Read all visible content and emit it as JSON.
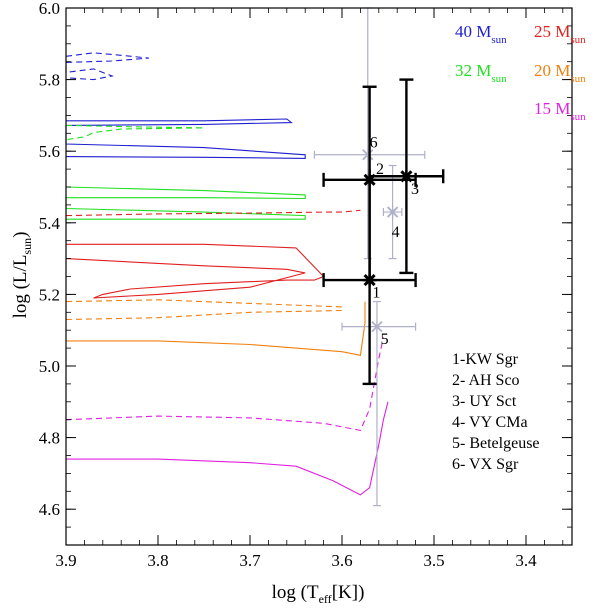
{
  "chart_data": {
    "type": "scatter",
    "title": "",
    "xlabel_main": "log (T",
    "xlabel_sub": "eff",
    "xlabel_tail": "[K])",
    "ylabel_main": "log (L/L",
    "ylabel_sub": "sun",
    "ylabel_tail": ")",
    "xlim": [
      3.9,
      3.35
    ],
    "ylim": [
      4.5,
      6.0
    ],
    "xticks": [
      3.9,
      3.8,
      3.7,
      3.6,
      3.5,
      3.4
    ],
    "xtick_labels": [
      "3.9",
      "3.8",
      "3.7",
      "3.6",
      "3.5",
      "3.4"
    ],
    "yticks": [
      4.6,
      4.8,
      5.0,
      5.2,
      5.4,
      5.6,
      5.8,
      6.0
    ],
    "ytick_labels": [
      "4.6",
      "4.8",
      "5.0",
      "5.2",
      "5.4",
      "5.6",
      "5.8",
      "6.0"
    ],
    "legend": [
      {
        "label": "40 M",
        "sub": "sun",
        "color": "#2020d0"
      },
      {
        "label": "25 M",
        "sub": "sun",
        "color": "#e02020"
      },
      {
        "label": "32 M",
        "sub": "sun",
        "color": "#20e020"
      },
      {
        "label": "20 M",
        "sub": "sun",
        "color": "#f08010"
      },
      {
        "label": "15 M",
        "sub": "sun",
        "color": "#e020e0"
      }
    ],
    "stars_black": [
      {
        "id": "1",
        "x": 3.57,
        "y": 5.24,
        "xerr": [
          3.62,
          3.52
        ],
        "yerr": [
          4.95,
          5.52
        ]
      },
      {
        "id": "2",
        "x": 3.57,
        "y": 5.52,
        "xerr": [
          3.62,
          3.52
        ],
        "yerr": [
          5.24,
          5.78
        ]
      },
      {
        "id": "3",
        "x": 3.53,
        "y": 5.53,
        "xerr": [
          3.57,
          3.49
        ],
        "yerr": [
          5.26,
          5.8
        ]
      }
    ],
    "stars_gray": [
      {
        "id": "4",
        "x": 3.545,
        "y": 5.43,
        "xerr": [
          3.555,
          3.535
        ],
        "yerr": [
          5.3,
          5.56
        ]
      },
      {
        "id": "5",
        "x": 3.562,
        "y": 5.11,
        "xerr": [
          3.6,
          3.52
        ],
        "yerr": [
          4.61,
          5.18
        ]
      },
      {
        "id": "6",
        "x": 3.572,
        "y": 5.59,
        "xerr": [
          3.63,
          3.51
        ],
        "yerr": [
          5.3,
          6.0
        ]
      }
    ],
    "star_labels": [
      {
        "text": "1",
        "x": 3.567,
        "y": 5.205
      },
      {
        "text": "2",
        "x": 3.563,
        "y": 5.55
      },
      {
        "text": "3",
        "x": 3.525,
        "y": 5.495
      },
      {
        "text": "4",
        "x": 3.546,
        "y": 5.375
      },
      {
        "text": "5",
        "x": 3.558,
        "y": 5.075
      },
      {
        "text": "6",
        "x": 3.57,
        "y": 5.625
      }
    ],
    "key": [
      "1-KW Sgr",
      "2- AH Sco",
      "3- UY Sct",
      "4- VY CMa",
      "5- Betelgeuse",
      "6- VX Sgr"
    ],
    "tracks": [
      {
        "name": "40 M solid",
        "color": "#2020d0",
        "dash": false,
        "points": [
          [
            3.9,
            5.685
          ],
          [
            3.75,
            5.685
          ],
          [
            3.66,
            5.69
          ],
          [
            3.655,
            5.68
          ],
          [
            3.75,
            5.675
          ],
          [
            3.9,
            5.672
          ],
          [
            3.9,
            5.62
          ],
          [
            3.75,
            5.61
          ],
          [
            3.64,
            5.59
          ],
          [
            3.64,
            5.58
          ],
          [
            3.75,
            5.583
          ],
          [
            3.9,
            5.585
          ]
        ]
      },
      {
        "name": "40 M dashed",
        "color": "#2020d0",
        "dash": true,
        "points": [
          [
            3.9,
            5.865
          ],
          [
            3.87,
            5.875
          ],
          [
            3.84,
            5.868
          ],
          [
            3.81,
            5.86
          ],
          [
            3.85,
            5.852
          ],
          [
            3.9,
            5.848
          ],
          [
            3.9,
            5.82
          ],
          [
            3.87,
            5.83
          ],
          [
            3.85,
            5.81
          ],
          [
            3.87,
            5.8
          ],
          [
            3.9,
            5.805
          ]
        ]
      },
      {
        "name": "32 M solid",
        "color": "#20e020",
        "dash": false,
        "points": [
          [
            3.9,
            5.5
          ],
          [
            3.75,
            5.49
          ],
          [
            3.64,
            5.478
          ],
          [
            3.64,
            5.468
          ],
          [
            3.75,
            5.47
          ],
          [
            3.9,
            5.47
          ],
          [
            3.9,
            5.44
          ],
          [
            3.75,
            5.43
          ],
          [
            3.64,
            5.42
          ],
          [
            3.64,
            5.41
          ],
          [
            3.75,
            5.41
          ],
          [
            3.9,
            5.41
          ]
        ]
      },
      {
        "name": "32 M dashed",
        "color": "#20e020",
        "dash": true,
        "points": [
          [
            3.9,
            5.672
          ],
          [
            3.82,
            5.668
          ],
          [
            3.75,
            5.665
          ],
          [
            3.84,
            5.662
          ],
          [
            3.87,
            5.652
          ],
          [
            3.88,
            5.64
          ],
          [
            3.9,
            5.632
          ]
        ]
      },
      {
        "name": "25 M solid",
        "color": "#e02020",
        "dash": false,
        "points": [
          [
            3.9,
            5.34
          ],
          [
            3.75,
            5.34
          ],
          [
            3.65,
            5.33
          ],
          [
            3.62,
            5.25
          ],
          [
            3.63,
            5.24
          ],
          [
            3.66,
            5.24
          ],
          [
            3.75,
            5.23
          ],
          [
            3.83,
            5.215
          ],
          [
            3.86,
            5.2
          ],
          [
            3.87,
            5.19
          ],
          [
            3.8,
            5.2
          ],
          [
            3.7,
            5.22
          ],
          [
            3.64,
            5.26
          ],
          [
            3.66,
            5.27
          ],
          [
            3.75,
            5.28
          ],
          [
            3.9,
            5.3
          ]
        ]
      },
      {
        "name": "25 M dashed",
        "color": "#e02020",
        "dash": true,
        "points": [
          [
            3.9,
            5.42
          ],
          [
            3.8,
            5.425
          ],
          [
            3.7,
            5.427
          ],
          [
            3.62,
            5.43
          ],
          [
            3.6,
            5.43
          ],
          [
            3.58,
            5.435
          ]
        ]
      },
      {
        "name": "20 M solid",
        "color": "#f08010",
        "dash": false,
        "points": [
          [
            3.9,
            5.07
          ],
          [
            3.8,
            5.07
          ],
          [
            3.7,
            5.06
          ],
          [
            3.6,
            5.04
          ],
          [
            3.58,
            5.03
          ],
          [
            3.575,
            5.12
          ],
          [
            3.575,
            5.18
          ]
        ]
      },
      {
        "name": "20 M dashed",
        "color": "#f08010",
        "dash": true,
        "points": [
          [
            3.9,
            5.18
          ],
          [
            3.8,
            5.185
          ],
          [
            3.7,
            5.175
          ],
          [
            3.6,
            5.165
          ],
          [
            3.6,
            5.155
          ],
          [
            3.7,
            5.15
          ],
          [
            3.8,
            5.135
          ],
          [
            3.9,
            5.13
          ]
        ]
      },
      {
        "name": "15 M solid",
        "color": "#e020e0",
        "dash": false,
        "points": [
          [
            3.9,
            4.74
          ],
          [
            3.8,
            4.74
          ],
          [
            3.7,
            4.73
          ],
          [
            3.65,
            4.72
          ],
          [
            3.61,
            4.68
          ],
          [
            3.58,
            4.64
          ],
          [
            3.57,
            4.66
          ],
          [
            3.565,
            4.72
          ],
          [
            3.56,
            4.78
          ],
          [
            3.555,
            4.85
          ],
          [
            3.55,
            4.9
          ]
        ]
      },
      {
        "name": "15 M dashed",
        "color": "#e020e0",
        "dash": true,
        "points": [
          [
            3.9,
            4.85
          ],
          [
            3.8,
            4.86
          ],
          [
            3.7,
            4.855
          ],
          [
            3.62,
            4.84
          ],
          [
            3.58,
            4.82
          ],
          [
            3.57,
            4.88
          ],
          [
            3.565,
            4.95
          ],
          [
            3.56,
            5.02
          ],
          [
            3.555,
            5.08
          ]
        ]
      }
    ]
  }
}
